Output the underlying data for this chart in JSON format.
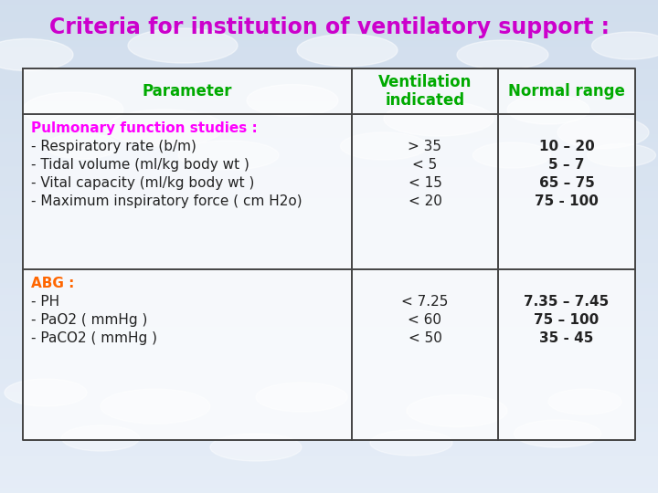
{
  "title": "Criteria for institution of ventilatory support :",
  "title_color": "#cc00cc",
  "title_fontsize": 17,
  "header_color": "#00aa00",
  "header_row": [
    "Parameter",
    "Ventilation\nindicated",
    "Normal range"
  ],
  "row1_label_bold": "Pulmonary function studies :",
  "row1_label_bold_color": "#ff00ff",
  "row1_items": [
    "- Respiratory rate (b/m)",
    "- Tidal volume (ml/kg body wt )",
    "- Vital capacity (ml/kg body wt )",
    "- Maximum inspiratory force ( cm H2o)"
  ],
  "row1_vent": [
    "> 35",
    "< 5",
    "< 15",
    "< 20"
  ],
  "row1_normal": [
    "10 – 20",
    "5 – 7",
    "65 – 75",
    "75 - 100"
  ],
  "row2_label_bold": "ABG :",
  "row2_label_bold_color": "#ff6600",
  "row2_items": [
    "- PH",
    "- PaO2 ( mmHg )",
    "- PaCO2 ( mmHg )"
  ],
  "row2_vent": [
    "< 7.25",
    "< 60",
    "< 50"
  ],
  "row2_normal": [
    "7.35 – 7.45",
    "75 – 100",
    "35 - 45"
  ],
  "table_border_color": "#444444",
  "data_color": "#222222",
  "data_fontsize": 11,
  "header_fontsize": 12
}
